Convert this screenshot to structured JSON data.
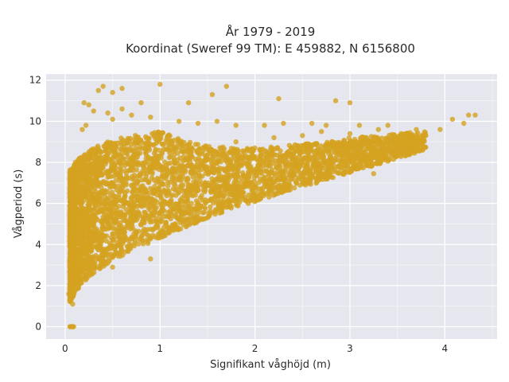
{
  "chart_data": {
    "type": "scatter",
    "title_lines": [
      "År 1979 - 2019",
      "Koordinat (Sweref 99 TM): E 459882, N 6156800"
    ],
    "xlabel": "Signifikant våghöjd (m)",
    "ylabel": "Vågperiod (s)",
    "xlim": [
      -0.2,
      4.55
    ],
    "ylim": [
      -0.6,
      12.3
    ],
    "xticks": [
      0,
      1,
      2,
      3,
      4
    ],
    "yticks": [
      0,
      2,
      4,
      6,
      8,
      10,
      12
    ],
    "grid": true,
    "colors": {
      "marker": "#d4a220",
      "plot_background": "#e6e6ef",
      "grid": "#ffffff"
    },
    "envelope": {
      "description_hidden": false,
      "x": [
        0.05,
        0.1,
        0.2,
        0.3,
        0.5,
        0.7,
        1.0,
        1.3,
        1.5,
        1.8,
        2.0,
        2.3,
        2.5,
        2.8,
        3.0,
        3.3,
        3.5,
        3.8
      ],
      "y_lower": [
        1.2,
        1.6,
        2.2,
        2.6,
        3.2,
        3.7,
        4.3,
        4.9,
        5.3,
        5.8,
        6.1,
        6.5,
        6.8,
        7.2,
        7.5,
        7.9,
        8.2,
        8.6
      ],
      "y_upper": [
        7.6,
        8.0,
        8.4,
        8.7,
        9.1,
        9.3,
        9.5,
        9.0,
        8.8,
        8.7,
        8.7,
        8.8,
        8.9,
        9.0,
        9.2,
        9.3,
        9.4,
        9.5
      ]
    },
    "points": [
      [
        0.05,
        0.0
      ],
      [
        0.06,
        0.0
      ],
      [
        0.07,
        0.0
      ],
      [
        0.08,
        0.0
      ],
      [
        0.09,
        0.0
      ],
      [
        0.04,
        1.6
      ],
      [
        0.05,
        1.5
      ],
      [
        0.08,
        1.1
      ],
      [
        0.35,
        11.5
      ],
      [
        0.4,
        11.7
      ],
      [
        0.5,
        11.4
      ],
      [
        0.6,
        11.6
      ],
      [
        1.0,
        11.8
      ],
      [
        1.7,
        11.7
      ],
      [
        1.55,
        11.3
      ],
      [
        0.2,
        10.9
      ],
      [
        0.25,
        10.8
      ],
      [
        0.3,
        10.5
      ],
      [
        0.45,
        10.4
      ],
      [
        0.6,
        10.6
      ],
      [
        0.8,
        10.9
      ],
      [
        1.3,
        10.9
      ],
      [
        2.25,
        11.1
      ],
      [
        2.85,
        11.0
      ],
      [
        3.0,
        10.9
      ],
      [
        0.18,
        9.6
      ],
      [
        0.22,
        9.8
      ],
      [
        0.5,
        10.1
      ],
      [
        0.7,
        10.3
      ],
      [
        0.9,
        10.2
      ],
      [
        1.2,
        10.0
      ],
      [
        1.4,
        9.9
      ],
      [
        1.6,
        10.0
      ],
      [
        1.8,
        9.8
      ],
      [
        2.1,
        9.8
      ],
      [
        2.3,
        9.9
      ],
      [
        2.6,
        9.9
      ],
      [
        2.75,
        9.8
      ],
      [
        3.1,
        9.8
      ],
      [
        3.4,
        9.8
      ],
      [
        3.7,
        9.6
      ],
      [
        3.95,
        9.6
      ],
      [
        4.2,
        9.9
      ],
      [
        4.25,
        10.3
      ],
      [
        4.32,
        10.3
      ],
      [
        4.08,
        10.1
      ],
      [
        1.8,
        9.0
      ],
      [
        2.2,
        9.2
      ],
      [
        2.5,
        9.3
      ],
      [
        2.7,
        9.5
      ],
      [
        3.0,
        9.4
      ],
      [
        3.3,
        9.6
      ],
      [
        3.6,
        9.2
      ],
      [
        3.8,
        9.3
      ],
      [
        3.25,
        7.45
      ],
      [
        2.6,
        7.3
      ],
      [
        2.9,
        7.7
      ],
      [
        1.5,
        5.3
      ],
      [
        0.9,
        3.3
      ],
      [
        0.5,
        2.9
      ]
    ]
  }
}
